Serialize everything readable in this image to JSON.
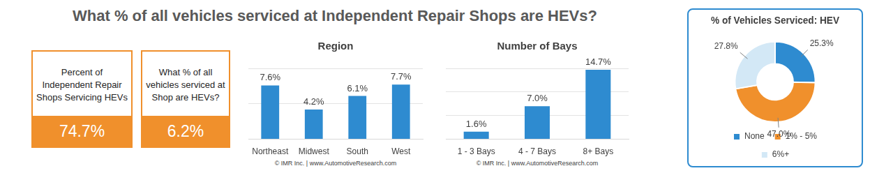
{
  "title": "What % of all vehicles serviced at Independent Repair Shops are HEVs?",
  "kpis": [
    {
      "label": "Percent of Independent Repair Shops Servicing HEVs",
      "value": "74.7%"
    },
    {
      "label": "What % of all vehicles serviced at Shop are HEVs?",
      "value": "6.2%"
    }
  ],
  "chart_data": [
    {
      "type": "bar",
      "title": "Region",
      "categories": [
        "Northeast",
        "Midwest",
        "South",
        "West"
      ],
      "values": [
        7.6,
        4.2,
        6.1,
        7.7
      ],
      "value_labels": [
        "7.6%",
        "4.2%",
        "6.1%",
        "7.7%"
      ],
      "data_labels": true,
      "color": "#2e8bd0",
      "ylim": [
        0,
        10
      ],
      "yticks": [
        0,
        5,
        10
      ],
      "grid": true,
      "tick_labels": "x",
      "footer": "© IMR Inc. | www.AutomotiveResearch.com"
    },
    {
      "type": "bar",
      "title": "Number of Bays",
      "categories": [
        "1 - 3 Bays",
        "4 - 7 Bays",
        "8+ Bays"
      ],
      "values": [
        1.6,
        7.0,
        14.7
      ],
      "value_labels": [
        "1.6%",
        "7.0%",
        "14.7%"
      ],
      "data_labels": true,
      "color": "#2e8bd0",
      "ylim": [
        0,
        15
      ],
      "yticks": [
        0,
        5,
        10,
        15
      ],
      "grid": true,
      "tick_labels": "x",
      "footer": "© IMR Inc. | www.AutomotiveResearch.com"
    },
    {
      "type": "doughnut",
      "title": "% of Vehicles Serviced: HEV",
      "categories": [
        "None",
        "1% - 5%",
        "6%+"
      ],
      "values": [
        25.3,
        47.0,
        27.8
      ],
      "value_labels": [
        "25.3%",
        "47.0%",
        "27.8%"
      ],
      "data_labels": true,
      "colors": [
        "#2e8bd0",
        "#f0902c",
        "#d3e8f6"
      ],
      "legend": "bottom"
    }
  ]
}
